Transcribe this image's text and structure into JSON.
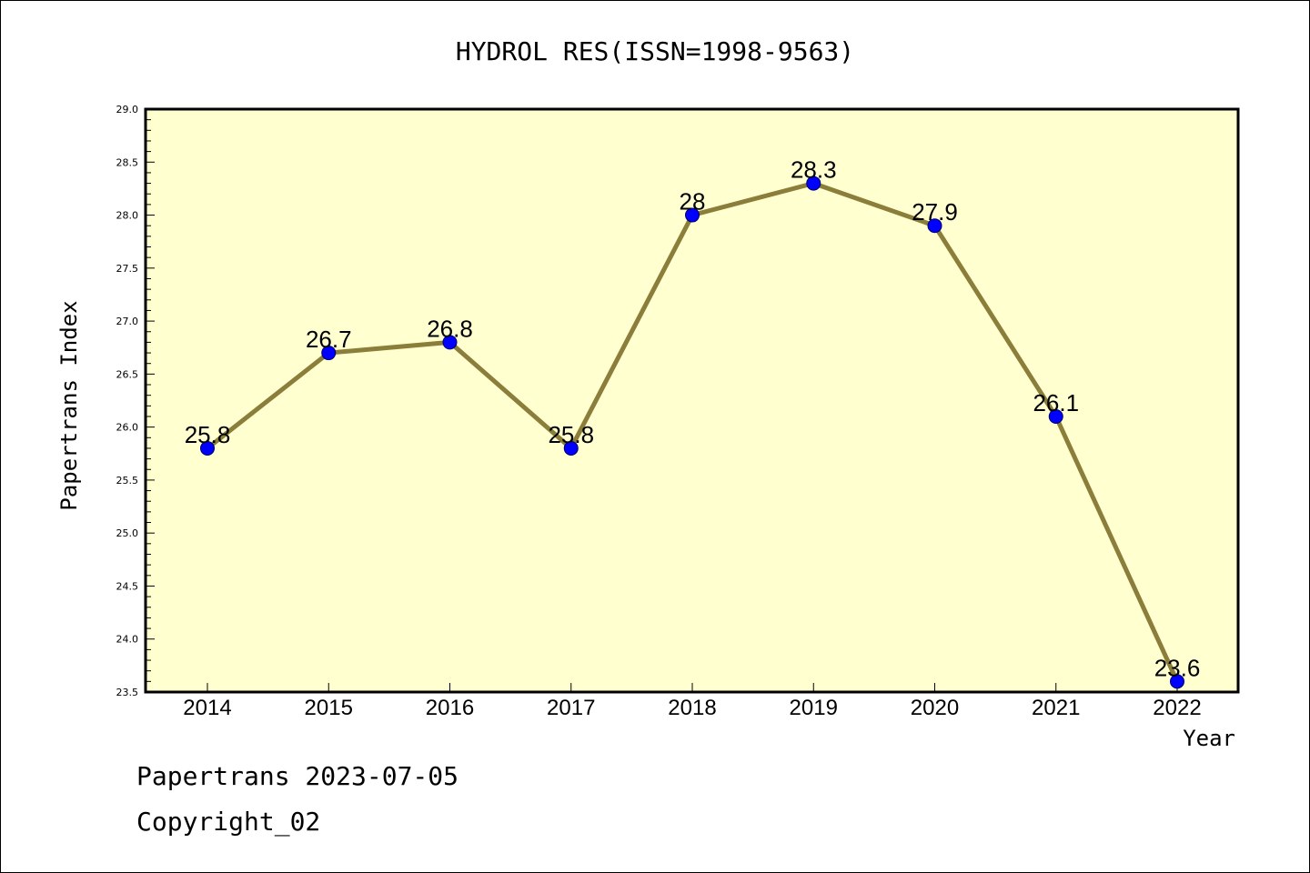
{
  "chart_data": {
    "type": "line",
    "title": "HYDROL RES(ISSN=1998-9563)",
    "xlabel": "Year",
    "ylabel": "Papertrans Index",
    "categories": [
      "2014",
      "2015",
      "2016",
      "2017",
      "2018",
      "2019",
      "2020",
      "2021",
      "2022"
    ],
    "series": [
      {
        "values": [
          25.8,
          26.7,
          26.8,
          25.8,
          28.0,
          28.3,
          27.9,
          26.1,
          23.6
        ],
        "labels": [
          "25.8",
          "26.7",
          "26.8",
          "25.8",
          "28",
          "28.3",
          "27.9",
          "26.1",
          "23.6"
        ]
      }
    ],
    "ylim": [
      23.5,
      29.0
    ],
    "yticks": [
      "23.5",
      "24.0",
      "24.5",
      "25.0",
      "25.5",
      "26.0",
      "26.5",
      "27.0",
      "27.5",
      "28.0",
      "28.5",
      "29.0"
    ],
    "grid": false,
    "colors": {
      "plot_background": "#ffffd0",
      "line": "#8b7d3a",
      "marker": "#0000ff"
    }
  },
  "footer": {
    "line1": "Papertrans 2023-07-05",
    "line2": "Copyright_02"
  }
}
